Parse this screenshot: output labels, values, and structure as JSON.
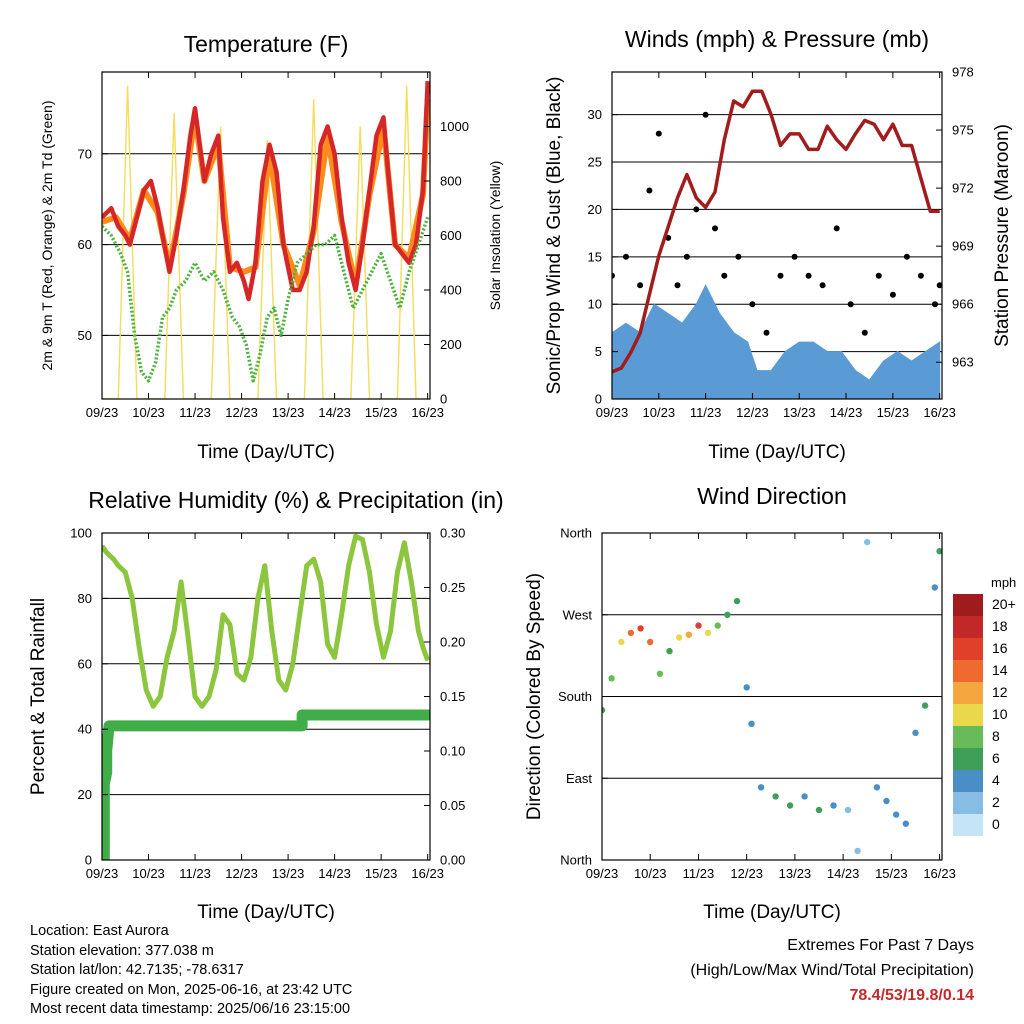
{
  "panels": {
    "temperature": {
      "title": "Temperature (F)",
      "ylabel": "2m & 9m T (Red, Orange) & 2m Td (Green)",
      "y2label": "Solar Insolation (Yellow)",
      "xlabel": "Time (Day/UTC)"
    },
    "winds": {
      "title": "Winds (mph) & Pressure (mb)",
      "ylabel": "Sonic/Prop Wind & Gust (Blue, Black)",
      "y2label": "Station Pressure (Maroon)",
      "xlabel": "Time (Day/UTC)"
    },
    "humidity": {
      "title": "Relative Humidity (%) & Precipitation (in)",
      "ylabel": "Percent & Total Rainfall",
      "xlabel": "Time (Day/UTC)"
    },
    "direction": {
      "title": "Wind Direction",
      "ylabel": "Direction (Colored By Speed)",
      "xlabel": "Time (Day/UTC)",
      "legend_title": "mph"
    }
  },
  "info": {
    "location": "Location: East Aurora",
    "elevation": "Station elevation: 377.038 m",
    "latlon": "Station lat/lon: 42.7135; -78.6317",
    "created": "Figure created on Mon, 2025-06-16, at 23:42 UTC",
    "recent": "Most recent data timestamp: 2025/06/16 23:15:00"
  },
  "extremes": {
    "line1": "Extremes For Past 7 Days",
    "line2": "(High/Low/Max Wind/Total Precipitation)",
    "values": "78.4/53/19.8/0.14"
  },
  "colors": {
    "temp2m": "#d62728",
    "temp9m": "#ff8c1a",
    "dewpoint": "#4db33d",
    "solar": "#f5dc5a",
    "wind": "#5b9bd5",
    "gust": "#000000",
    "pressure": "#a11c1c",
    "rh": "#8cc63f",
    "precip": "#41ad49"
  },
  "chart_data": [
    {
      "type": "line",
      "name": "temperature",
      "x_ticks": [
        "09/23",
        "10/23",
        "11/23",
        "12/23",
        "13/23",
        "14/23",
        "15/23",
        "16/23"
      ],
      "xlim": [
        9.0,
        16.05
      ],
      "y_ticks": [
        50,
        60,
        70
      ],
      "ylim": [
        43,
        79
      ],
      "y2_ticks": [
        0,
        200,
        400,
        600,
        800,
        1000
      ],
      "y2lim": [
        0,
        1200
      ],
      "series": [
        {
          "key": "t2m",
          "color_key": "temp2m",
          "x": [
            9.0,
            9.2,
            9.35,
            9.5,
            9.6,
            9.75,
            9.9,
            10.05,
            10.2,
            10.3,
            10.45,
            10.6,
            10.75,
            10.9,
            11.0,
            11.05,
            11.2,
            11.35,
            11.5,
            11.6,
            11.75,
            11.9,
            12.05,
            12.15,
            12.3,
            12.45,
            12.6,
            12.75,
            12.9,
            13.1,
            13.25,
            13.4,
            13.55,
            13.7,
            13.85,
            14.0,
            14.15,
            14.3,
            14.45,
            14.6,
            14.75,
            14.9,
            15.05,
            15.15,
            15.3,
            15.45,
            15.6,
            15.75,
            15.9,
            16.0
          ],
          "y": [
            63,
            64,
            62,
            61,
            60,
            63,
            66,
            67,
            64,
            61,
            57,
            61,
            66,
            72,
            75,
            73,
            67,
            70,
            72,
            63,
            57,
            58,
            56,
            54,
            58,
            67,
            71,
            68,
            60,
            55,
            55,
            57,
            62,
            71,
            73,
            70,
            63,
            58,
            55,
            60,
            66,
            72,
            74,
            68,
            60,
            59,
            58,
            60,
            66,
            78
          ]
        },
        {
          "key": "t9m",
          "color_key": "temp9m",
          "x": [
            9.0,
            9.3,
            9.6,
            9.9,
            10.2,
            10.45,
            10.75,
            11.0,
            11.2,
            11.5,
            11.75,
            12.05,
            12.3,
            12.6,
            12.9,
            13.25,
            13.55,
            13.85,
            14.15,
            14.45,
            14.75,
            15.05,
            15.3,
            15.6,
            15.9,
            16.0
          ],
          "y": [
            62.5,
            63,
            60.5,
            66,
            63.5,
            57.5,
            65.5,
            74,
            67,
            71,
            57.5,
            57,
            57.5,
            70,
            60,
            55.5,
            61.5,
            72,
            62.5,
            55.5,
            65.5,
            73,
            60,
            58.5,
            65.5,
            76
          ]
        },
        {
          "key": "td",
          "color_key": "dewpoint",
          "x": [
            9.0,
            9.2,
            9.4,
            9.55,
            9.7,
            9.85,
            10.0,
            10.15,
            10.3,
            10.45,
            10.6,
            10.8,
            11.0,
            11.2,
            11.4,
            11.6,
            11.8,
            11.95,
            12.1,
            12.25,
            12.4,
            12.55,
            12.7,
            12.85,
            13.0,
            13.2,
            13.4,
            13.6,
            13.8,
            14.0,
            14.2,
            14.4,
            14.6,
            14.8,
            15.0,
            15.2,
            15.4,
            15.6,
            15.8,
            16.0
          ],
          "y": [
            62,
            61,
            59,
            57,
            50,
            46,
            45,
            47,
            52,
            53,
            55,
            56,
            58,
            56,
            57,
            55,
            52,
            51,
            49,
            45,
            48,
            52,
            53,
            50,
            54,
            58,
            59,
            60,
            60,
            61,
            57,
            53,
            55,
            57,
            59,
            56,
            53,
            57,
            60,
            63
          ]
        },
        {
          "key": "solar",
          "color_key": "solar",
          "axis": "y2",
          "x": [
            9.0,
            9.35,
            9.55,
            9.75,
            10.0,
            10.35,
            10.55,
            10.75,
            11.0,
            11.35,
            11.55,
            11.75,
            12.0,
            12.35,
            12.55,
            12.75,
            13.0,
            13.35,
            13.55,
            13.75,
            14.0,
            14.35,
            14.55,
            14.75,
            15.0,
            15.35,
            15.55,
            15.75,
            16.0
          ],
          "y": [
            0,
            0,
            1150,
            0,
            0,
            0,
            1050,
            0,
            0,
            0,
            1000,
            0,
            0,
            0,
            950,
            0,
            0,
            0,
            1100,
            0,
            0,
            0,
            1000,
            0,
            0,
            0,
            1150,
            0,
            0
          ]
        }
      ]
    },
    {
      "type": "line",
      "name": "winds",
      "x_ticks": [
        "09/23",
        "10/23",
        "11/23",
        "12/23",
        "13/23",
        "14/23",
        "15/23",
        "16/23"
      ],
      "xlim": [
        9.0,
        16.05
      ],
      "y_ticks": [
        0,
        5,
        10,
        15,
        20,
        25,
        30
      ],
      "ylim": [
        0,
        34.5
      ],
      "y2_ticks": [
        963,
        966,
        969,
        972,
        975,
        978
      ],
      "y2lim": [
        961.1,
        978.0
      ],
      "series": [
        {
          "key": "wind",
          "color_key": "wind",
          "plot": "band",
          "x": [
            9.0,
            9.3,
            9.6,
            9.9,
            10.2,
            10.5,
            10.8,
            11.0,
            11.3,
            11.6,
            11.9,
            12.1,
            12.4,
            12.7,
            13.0,
            13.3,
            13.6,
            13.9,
            14.2,
            14.5,
            14.8,
            15.1,
            15.4,
            15.7,
            16.0
          ],
          "y": [
            7,
            8,
            7,
            10,
            9,
            8,
            10,
            12,
            9,
            7,
            6,
            3,
            3,
            5,
            6,
            6,
            5,
            5,
            3,
            2,
            4,
            5,
            4,
            5,
            6
          ]
        },
        {
          "key": "gust",
          "color_key": "gust",
          "plot": "dots",
          "x": [
            9.0,
            9.3,
            9.6,
            9.8,
            10.0,
            10.2,
            10.4,
            10.6,
            10.8,
            11.0,
            11.2,
            11.4,
            11.7,
            12.0,
            12.3,
            12.6,
            12.9,
            13.2,
            13.5,
            13.8,
            14.1,
            14.4,
            14.7,
            15.0,
            15.3,
            15.6,
            15.9,
            16.0
          ],
          "y": [
            13,
            15,
            12,
            22,
            28,
            17,
            12,
            15,
            20,
            30,
            18,
            13,
            15,
            10,
            7,
            13,
            15,
            13,
            12,
            18,
            10,
            7,
            13,
            11,
            15,
            13,
            10,
            12
          ]
        },
        {
          "key": "pressure",
          "color_key": "pressure",
          "axis": "y2",
          "x": [
            9.0,
            9.2,
            9.4,
            9.6,
            9.8,
            10.0,
            10.2,
            10.4,
            10.6,
            10.8,
            11.0,
            11.2,
            11.4,
            11.6,
            11.8,
            12.0,
            12.2,
            12.4,
            12.6,
            12.8,
            13.0,
            13.2,
            13.4,
            13.6,
            13.8,
            14.0,
            14.2,
            14.4,
            14.6,
            14.8,
            15.0,
            15.2,
            15.4,
            15.6,
            15.8,
            16.0
          ],
          "y": [
            962.5,
            962.7,
            963.5,
            964.5,
            966.5,
            968.5,
            970.0,
            971.5,
            972.7,
            971.5,
            971.0,
            971.8,
            974.5,
            976.5,
            976.2,
            977.0,
            977.0,
            975.8,
            974.2,
            974.8,
            974.8,
            974.0,
            974.0,
            975.2,
            974.5,
            974.0,
            974.8,
            975.5,
            975.3,
            974.5,
            975.3,
            974.2,
            974.2,
            972.5,
            970.8,
            970.8
          ]
        }
      ]
    },
    {
      "type": "line",
      "name": "humidity",
      "x_ticks": [
        "09/23",
        "10/23",
        "11/23",
        "12/23",
        "13/23",
        "14/23",
        "15/23",
        "16/23"
      ],
      "xlim": [
        9.0,
        16.05
      ],
      "y_ticks": [
        0,
        20,
        40,
        60,
        80,
        100
      ],
      "ylim": [
        0,
        100
      ],
      "y2_ticks": [
        "0.00",
        "0.05",
        "0.10",
        "0.15",
        "0.20",
        "0.25",
        "0.30"
      ],
      "y2lim": [
        0,
        0.3
      ],
      "series": [
        {
          "key": "rh",
          "color_key": "rh",
          "x": [
            9.0,
            9.1,
            9.25,
            9.35,
            9.5,
            9.65,
            9.8,
            9.95,
            10.1,
            10.25,
            10.4,
            10.55,
            10.7,
            10.85,
            11.0,
            11.15,
            11.3,
            11.45,
            11.6,
            11.75,
            11.9,
            12.05,
            12.2,
            12.35,
            12.5,
            12.65,
            12.8,
            12.95,
            13.1,
            13.25,
            13.4,
            13.55,
            13.7,
            13.85,
            14.0,
            14.15,
            14.3,
            14.45,
            14.6,
            14.75,
            14.9,
            15.05,
            15.2,
            15.35,
            15.5,
            15.65,
            15.8,
            15.9,
            16.0
          ],
          "y": [
            96,
            94,
            92,
            90,
            88,
            80,
            65,
            52,
            47,
            50,
            62,
            70,
            85,
            68,
            50,
            47,
            50,
            58,
            75,
            72,
            57,
            55,
            62,
            80,
            90,
            70,
            55,
            52,
            60,
            75,
            90,
            92,
            85,
            66,
            62,
            75,
            90,
            99,
            98,
            88,
            72,
            62,
            70,
            88,
            97,
            85,
            70,
            65,
            61
          ]
        },
        {
          "key": "precip",
          "color_key": "precip",
          "axis": "y2",
          "x": [
            9.0,
            9.05,
            9.05,
            9.1,
            9.1,
            9.15,
            13.3,
            13.3,
            14.0,
            15.0,
            16.0
          ],
          "y": [
            0.0,
            0.0,
            0.07,
            0.08,
            0.1,
            0.123,
            0.123,
            0.133,
            0.133,
            0.133,
            0.133
          ]
        }
      ]
    },
    {
      "type": "scatter",
      "name": "wind_direction",
      "x_ticks": [
        "09/23",
        "10/23",
        "11/23",
        "12/23",
        "13/23",
        "14/23",
        "15/23",
        "16/23"
      ],
      "xlim": [
        9.0,
        16.05
      ],
      "y_ticks": [
        "North",
        "East",
        "South",
        "West",
        "North"
      ],
      "ylim": [
        0,
        360
      ],
      "legend": {
        "title": "mph",
        "labels": [
          "20+",
          "18",
          "16",
          "14",
          "12",
          "10",
          "8",
          "6",
          "4",
          "2",
          "0"
        ],
        "colors": [
          "#a01c1c",
          "#c32828",
          "#e0402a",
          "#ee6a2f",
          "#f5a63f",
          "#e8d84a",
          "#69bb5a",
          "#3f9e58",
          "#4a8ec8",
          "#87bde2",
          "#c5e5f6"
        ]
      },
      "series": [
        {
          "key": "direction",
          "plot": "dots",
          "x": [
            9.0,
            9.2,
            9.4,
            9.6,
            9.8,
            10.0,
            10.2,
            10.4,
            10.6,
            10.8,
            11.0,
            11.2,
            11.4,
            11.6,
            11.8,
            12.0,
            12.1,
            12.3,
            12.6,
            12.9,
            13.2,
            13.5,
            13.8,
            14.1,
            14.3,
            14.5,
            14.7,
            14.9,
            15.1,
            15.3,
            15.5,
            15.7,
            15.9,
            16.0
          ],
          "y": [
            165,
            200,
            240,
            250,
            255,
            240,
            205,
            230,
            245,
            248,
            258,
            250,
            258,
            270,
            285,
            190,
            150,
            80,
            70,
            60,
            70,
            55,
            60,
            55,
            10,
            350,
            80,
            65,
            50,
            40,
            140,
            170,
            300,
            340
          ],
          "speed": [
            6,
            8,
            10,
            14,
            16,
            14,
            8,
            6,
            10,
            12,
            16,
            10,
            8,
            6,
            6,
            4,
            4,
            4,
            6,
            6,
            4,
            6,
            4,
            2,
            2,
            2,
            4,
            4,
            4,
            4,
            4,
            6,
            4,
            6
          ]
        }
      ]
    }
  ]
}
